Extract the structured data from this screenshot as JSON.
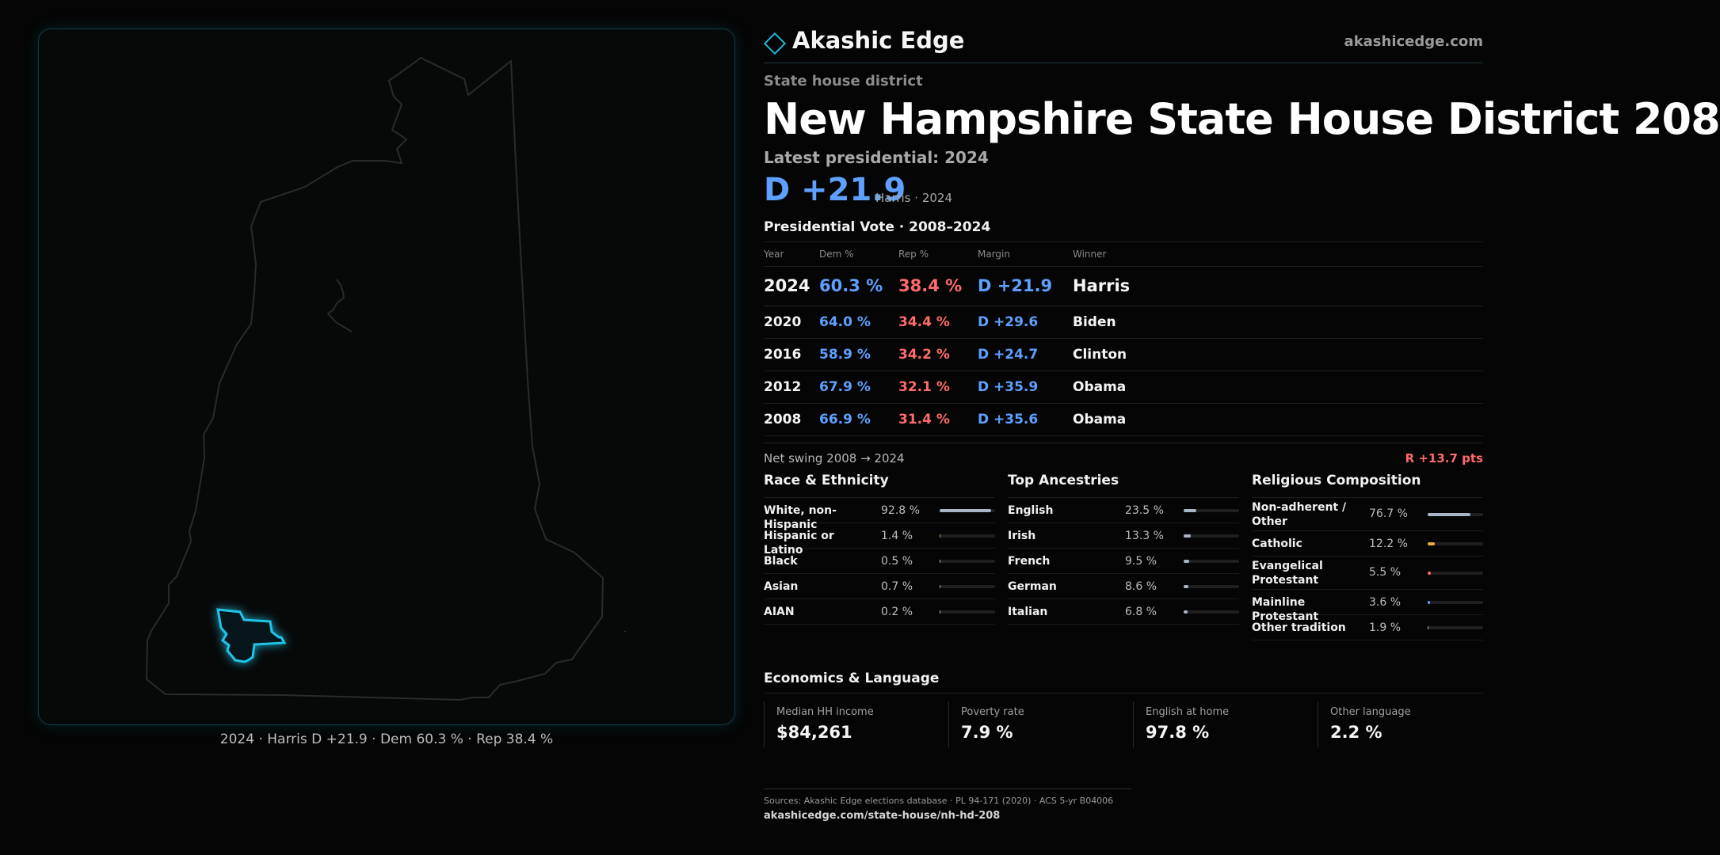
{
  "map": {
    "caption": "2024 · Harris D +21.9 · Dem 60.3 % · Rep 38.4 %",
    "outline_color": "#2a2a2a",
    "district_color": "#21c4e8"
  },
  "header": {
    "brand": "Akashic Edge",
    "url": "akashicedge.com",
    "accent": "#21b4d6"
  },
  "district": {
    "kicker": "State house district",
    "title": "New Hampshire State House District 208",
    "latest_label": "Latest presidential: 2024",
    "margin": "D +21.9",
    "margin_sub": "Harris · 2024"
  },
  "presidential": {
    "title": "Presidential Vote · 2008–2024",
    "columns": [
      "Year",
      "Dem %",
      "Rep %",
      "Margin",
      "Winner"
    ],
    "rows": [
      {
        "year": "2024",
        "dem": "60.3 %",
        "rep": "38.4 %",
        "margin": "D +21.9",
        "winner": "Harris"
      },
      {
        "year": "2020",
        "dem": "64.0 %",
        "rep": "34.4 %",
        "margin": "D +29.6",
        "winner": "Biden"
      },
      {
        "year": "2016",
        "dem": "58.9 %",
        "rep": "34.2 %",
        "margin": "D +24.7",
        "winner": "Clinton"
      },
      {
        "year": "2012",
        "dem": "67.9 %",
        "rep": "32.1 %",
        "margin": "D +35.9",
        "winner": "Obama"
      },
      {
        "year": "2008",
        "dem": "66.9 %",
        "rep": "31.4 %",
        "margin": "D +35.6",
        "winner": "Obama"
      }
    ],
    "swing_label": "Net swing 2008 → 2024",
    "swing_value": "R +13.7 pts"
  },
  "race": {
    "title": "Race & Ethnicity",
    "items": [
      {
        "label": "White, non-Hispanic",
        "value": "92.8 %",
        "pct": 92.8,
        "color": "#a9b4c4"
      },
      {
        "label": "Hispanic or Latino",
        "value": "1.4 %",
        "pct": 1.4,
        "color": "#d9a441"
      },
      {
        "label": "Black",
        "value": "0.5 %",
        "pct": 0.5,
        "color": "#a9b4c4"
      },
      {
        "label": "Asian",
        "value": "0.7 %",
        "pct": 0.7,
        "color": "#a9b4c4"
      },
      {
        "label": "AIAN",
        "value": "0.2 %",
        "pct": 0.2,
        "color": "#a9b4c4"
      }
    ]
  },
  "ancestry": {
    "title": "Top Ancestries",
    "items": [
      {
        "label": "English",
        "value": "23.5 %",
        "pct": 23.5,
        "color": "#a9b4c4"
      },
      {
        "label": "Irish",
        "value": "13.3 %",
        "pct": 13.3,
        "color": "#a9b4c4"
      },
      {
        "label": "French",
        "value": "9.5 %",
        "pct": 9.5,
        "color": "#a9b4c4"
      },
      {
        "label": "German",
        "value": "8.6 %",
        "pct": 8.6,
        "color": "#a9b4c4"
      },
      {
        "label": "Italian",
        "value": "6.8 %",
        "pct": 6.8,
        "color": "#a9b4c4"
      }
    ]
  },
  "religion": {
    "title": "Religious Composition",
    "items": [
      {
        "label": "Non-adherent / Other",
        "value": "76.7 %",
        "pct": 76.7,
        "color": "#a9b4c4"
      },
      {
        "label": "Catholic",
        "value": "12.2 %",
        "pct": 12.2,
        "color": "#e6b33a"
      },
      {
        "label": "Evangelical Protestant",
        "value": "5.5 %",
        "pct": 5.5,
        "color": "#ff6b6b"
      },
      {
        "label": "Mainline Protestant",
        "value": "3.6 %",
        "pct": 3.6,
        "color": "#5ea0ff"
      },
      {
        "label": "Other tradition",
        "value": "1.9 %",
        "pct": 1.9,
        "color": "#a9b4c4"
      }
    ]
  },
  "economics": {
    "title": "Economics & Language",
    "cells": [
      {
        "label": "Median HH income",
        "value": "$84,261"
      },
      {
        "label": "Poverty rate",
        "value": "7.9 %"
      },
      {
        "label": "English at home",
        "value": "97.8 %"
      },
      {
        "label": "Other language",
        "value": "2.2 %"
      }
    ]
  },
  "sources": {
    "line": "Sources: Akashic Edge elections database · PL 94-171 (2020) · ACS 5-yr B04006",
    "url": "akashicedge.com/state-house/nh-hd-208"
  }
}
